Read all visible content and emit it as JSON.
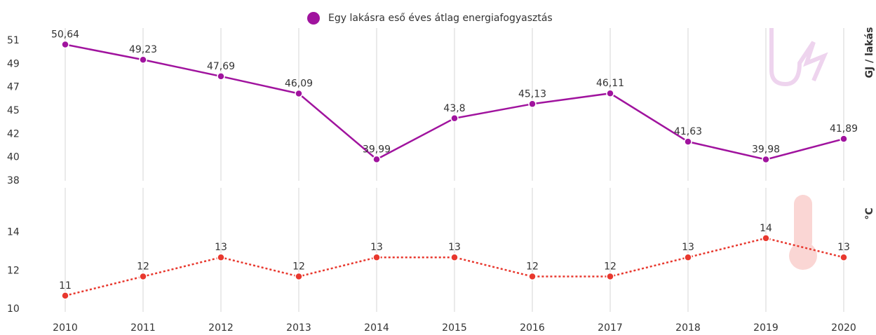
{
  "chart_data": [
    {
      "type": "line",
      "legend": "top",
      "y_label": "GJ / lakás",
      "series": [
        {
          "name": "Egy lakásra eső éves átlag energiafogyasztás",
          "color": "#a0139e",
          "line_style": "solid",
          "values": [
            50.64,
            49.23,
            47.69,
            46.09,
            39.99,
            43.8,
            45.13,
            46.11,
            41.63,
            39.98,
            41.89
          ],
          "value_labels": [
            "50,64",
            "49,23",
            "47,69",
            "46,09",
            "39,99",
            "43,8",
            "45,13",
            "46,11",
            "41,63",
            "39,98",
            "41,89"
          ]
        }
      ],
      "ylim": [
        38,
        51
      ],
      "yticks": [
        38,
        {
          "value": 40.17,
          "label": "40"
        },
        {
          "value": 42.33,
          "label": "42"
        },
        {
          "value": 44.5,
          "label": "45"
        },
        {
          "value": 46.67,
          "label": "47"
        },
        {
          "value": 48.83,
          "label": "49"
        },
        51
      ],
      "grid": true
    },
    {
      "type": "line",
      "y_label": "°C",
      "categories": [
        "2010",
        "2011",
        "2012",
        "2013",
        "2014",
        "2015",
        "2016",
        "2017",
        "2018",
        "2019",
        "2020"
      ],
      "series": [
        {
          "color": "#e8382e",
          "line_style": "dotted",
          "values": [
            10.7,
            11.7,
            12.7,
            11.7,
            12.7,
            12.7,
            11.7,
            11.7,
            12.7,
            13.7,
            12.7
          ],
          "value_labels": [
            "11",
            "12",
            "13",
            "12",
            "13",
            "13",
            "12",
            "12",
            "13",
            "14",
            "13"
          ]
        }
      ],
      "ylim": [
        10,
        14.5
      ],
      "yticks": [
        10,
        12,
        14
      ],
      "grid": true
    }
  ]
}
